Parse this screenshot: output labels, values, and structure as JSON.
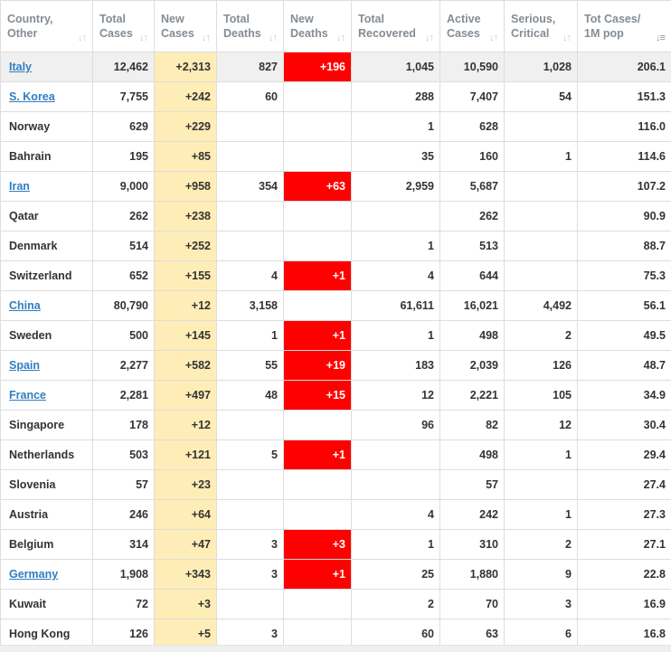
{
  "colors": {
    "new_cases_bg": "#feedb6",
    "new_deaths_bg": "#ff0000",
    "link": "#2f7ec1",
    "highlight_row": "#f0f0f0"
  },
  "headers": [
    {
      "line1": "Country,",
      "line2": "Other",
      "sort_icon": "sort-updown-icon"
    },
    {
      "line1": "Total",
      "line2": "Cases",
      "sort_icon": "sort-updown-icon"
    },
    {
      "line1": "New",
      "line2": "Cases",
      "sort_icon": "sort-updown-icon"
    },
    {
      "line1": "Total",
      "line2": "Deaths",
      "sort_icon": "sort-updown-icon"
    },
    {
      "line1": "New",
      "line2": "Deaths",
      "sort_icon": "sort-updown-icon"
    },
    {
      "line1": "Total",
      "line2": "Recovered",
      "sort_icon": "sort-updown-icon"
    },
    {
      "line1": "Active",
      "line2": "Cases",
      "sort_icon": "sort-updown-icon"
    },
    {
      "line1": "Serious,",
      "line2": "Critical",
      "sort_icon": "sort-updown-icon"
    },
    {
      "line1": "Tot Cases/",
      "line2": "1M pop",
      "sort_icon": "sort-descending-icon"
    }
  ],
  "rows": [
    {
      "country": "Italy",
      "link": true,
      "highlighted": true,
      "total_cases": "12,462",
      "new_cases": "+2,313",
      "total_deaths": "827",
      "new_deaths": "+196",
      "total_recovered": "1,045",
      "active_cases": "10,590",
      "serious": "1,028",
      "per_million": "206.1"
    },
    {
      "country": "S. Korea",
      "link": true,
      "total_cases": "7,755",
      "new_cases": "+242",
      "total_deaths": "60",
      "new_deaths": "",
      "total_recovered": "288",
      "active_cases": "7,407",
      "serious": "54",
      "per_million": "151.3"
    },
    {
      "country": "Norway",
      "link": false,
      "total_cases": "629",
      "new_cases": "+229",
      "total_deaths": "",
      "new_deaths": "",
      "total_recovered": "1",
      "active_cases": "628",
      "serious": "",
      "per_million": "116.0"
    },
    {
      "country": "Bahrain",
      "link": false,
      "total_cases": "195",
      "new_cases": "+85",
      "total_deaths": "",
      "new_deaths": "",
      "total_recovered": "35",
      "active_cases": "160",
      "serious": "1",
      "per_million": "114.6"
    },
    {
      "country": "Iran",
      "link": true,
      "total_cases": "9,000",
      "new_cases": "+958",
      "total_deaths": "354",
      "new_deaths": "+63",
      "total_recovered": "2,959",
      "active_cases": "5,687",
      "serious": "",
      "per_million": "107.2"
    },
    {
      "country": "Qatar",
      "link": false,
      "total_cases": "262",
      "new_cases": "+238",
      "total_deaths": "",
      "new_deaths": "",
      "total_recovered": "",
      "active_cases": "262",
      "serious": "",
      "per_million": "90.9"
    },
    {
      "country": "Denmark",
      "link": false,
      "total_cases": "514",
      "new_cases": "+252",
      "total_deaths": "",
      "new_deaths": "",
      "total_recovered": "1",
      "active_cases": "513",
      "serious": "",
      "per_million": "88.7"
    },
    {
      "country": "Switzerland",
      "link": false,
      "total_cases": "652",
      "new_cases": "+155",
      "total_deaths": "4",
      "new_deaths": "+1",
      "total_recovered": "4",
      "active_cases": "644",
      "serious": "",
      "per_million": "75.3"
    },
    {
      "country": "China",
      "link": true,
      "total_cases": "80,790",
      "new_cases": "+12",
      "total_deaths": "3,158",
      "new_deaths": "",
      "total_recovered": "61,611",
      "active_cases": "16,021",
      "serious": "4,492",
      "per_million": "56.1"
    },
    {
      "country": "Sweden",
      "link": false,
      "total_cases": "500",
      "new_cases": "+145",
      "total_deaths": "1",
      "new_deaths": "+1",
      "total_recovered": "1",
      "active_cases": "498",
      "serious": "2",
      "per_million": "49.5"
    },
    {
      "country": "Spain",
      "link": true,
      "total_cases": "2,277",
      "new_cases": "+582",
      "total_deaths": "55",
      "new_deaths": "+19",
      "total_recovered": "183",
      "active_cases": "2,039",
      "serious": "126",
      "per_million": "48.7"
    },
    {
      "country": "France",
      "link": true,
      "total_cases": "2,281",
      "new_cases": "+497",
      "total_deaths": "48",
      "new_deaths": "+15",
      "total_recovered": "12",
      "active_cases": "2,221",
      "serious": "105",
      "per_million": "34.9"
    },
    {
      "country": "Singapore",
      "link": false,
      "total_cases": "178",
      "new_cases": "+12",
      "total_deaths": "",
      "new_deaths": "",
      "total_recovered": "96",
      "active_cases": "82",
      "serious": "12",
      "per_million": "30.4"
    },
    {
      "country": "Netherlands",
      "link": false,
      "total_cases": "503",
      "new_cases": "+121",
      "total_deaths": "5",
      "new_deaths": "+1",
      "total_recovered": "",
      "active_cases": "498",
      "serious": "1",
      "per_million": "29.4"
    },
    {
      "country": "Slovenia",
      "link": false,
      "total_cases": "57",
      "new_cases": "+23",
      "total_deaths": "",
      "new_deaths": "",
      "total_recovered": "",
      "active_cases": "57",
      "serious": "",
      "per_million": "27.4"
    },
    {
      "country": "Austria",
      "link": false,
      "total_cases": "246",
      "new_cases": "+64",
      "total_deaths": "",
      "new_deaths": "",
      "total_recovered": "4",
      "active_cases": "242",
      "serious": "1",
      "per_million": "27.3"
    },
    {
      "country": "Belgium",
      "link": false,
      "total_cases": "314",
      "new_cases": "+47",
      "total_deaths": "3",
      "new_deaths": "+3",
      "total_recovered": "1",
      "active_cases": "310",
      "serious": "2",
      "per_million": "27.1"
    },
    {
      "country": "Germany",
      "link": true,
      "total_cases": "1,908",
      "new_cases": "+343",
      "total_deaths": "3",
      "new_deaths": "+1",
      "total_recovered": "25",
      "active_cases": "1,880",
      "serious": "9",
      "per_million": "22.8"
    },
    {
      "country": "Kuwait",
      "link": false,
      "total_cases": "72",
      "new_cases": "+3",
      "total_deaths": "",
      "new_deaths": "",
      "total_recovered": "2",
      "active_cases": "70",
      "serious": "3",
      "per_million": "16.9"
    },
    {
      "country": "Hong Kong",
      "link": false,
      "total_cases": "126",
      "new_cases": "+5",
      "total_deaths": "3",
      "new_deaths": "",
      "total_recovered": "60",
      "active_cases": "63",
      "serious": "6",
      "per_million": "16.8"
    }
  ]
}
